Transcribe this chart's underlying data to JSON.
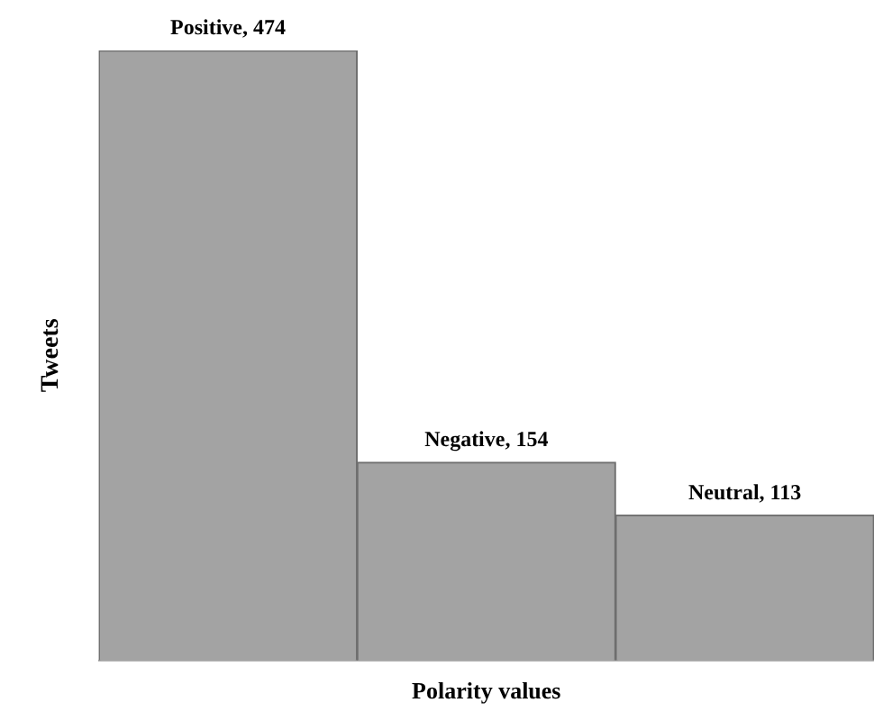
{
  "chart_data": {
    "type": "bar",
    "xlabel": "Polarity values",
    "ylabel": "Tweets",
    "categories": [
      null,
      null,
      null
    ],
    "values": [
      474,
      154,
      113
    ],
    "color": "#a3a3a3",
    "value_labels": [
      "Positive, 474",
      "Negative, 154",
      "Neutral, 113"
    ],
    "relative": false,
    "grid": false,
    "legend": false
  }
}
